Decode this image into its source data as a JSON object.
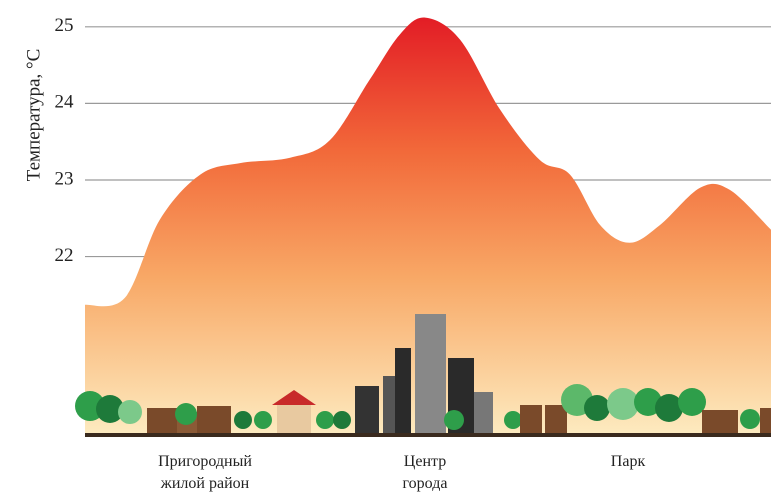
{
  "chart_data": {
    "type": "area",
    "y_label": "Температура, °C",
    "categories": [
      "Пригородный жилой район",
      "Центр города",
      "Парк"
    ],
    "x": [
      0,
      5.8,
      10.9,
      16.8,
      22.6,
      29.9,
      35.7,
      41.5,
      45.9,
      49.6,
      54.7,
      60.5,
      66.3,
      70.7,
      75.1,
      79.4,
      83.8,
      89.7,
      94.0,
      100
    ],
    "values": [
      21.37,
      21.46,
      22.48,
      23.07,
      23.22,
      23.29,
      23.52,
      24.31,
      24.9,
      25.12,
      24.83,
      23.92,
      23.26,
      23.07,
      22.41,
      22.18,
      22.41,
      22.9,
      22.87,
      22.35
    ],
    "xlim": [
      0,
      100
    ],
    "ylim": [
      19.67,
      25.35
    ],
    "yticks": [
      22,
      23,
      24,
      25
    ],
    "grid": true,
    "colors": [
      "#e31e26",
      "#f26a3a",
      "#f8a866",
      "#fdebc0"
    ]
  }
}
